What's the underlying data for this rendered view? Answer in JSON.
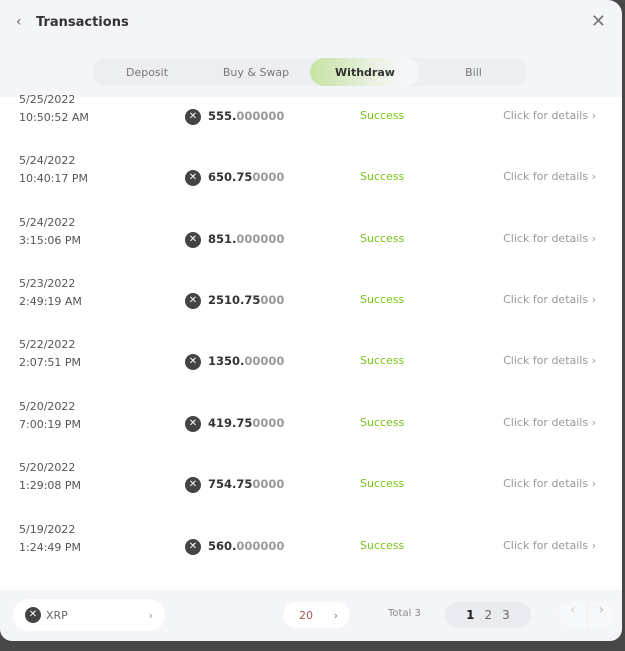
{
  "header": {
    "title": "Transactions",
    "back_icon": "chevron-left-icon",
    "close_icon": "close-icon"
  },
  "tabs": [
    {
      "label": "Deposit"
    },
    {
      "label": "Buy & Swap"
    },
    {
      "label": "Withdraw",
      "active": true
    },
    {
      "label": "Bill"
    }
  ],
  "rows": [
    {
      "date": "5/25/2022",
      "time": "10:50:52 AM",
      "amount_int": "555.",
      "amount_dec": "000000",
      "status": "Success",
      "details": "Click for details"
    },
    {
      "date": "5/24/2022",
      "time": "10:40:17 PM",
      "amount_int": "650.75",
      "amount_dec": "0000",
      "status": "Success",
      "details": "Click for details"
    },
    {
      "date": "5/24/2022",
      "time": "3:15:06 PM",
      "amount_int": "851.",
      "amount_dec": "000000",
      "status": "Success",
      "details": "Click for details"
    },
    {
      "date": "5/23/2022",
      "time": "2:49:19 AM",
      "amount_int": "2510.75",
      "amount_dec": "000",
      "status": "Success",
      "details": "Click for details"
    },
    {
      "date": "5/22/2022",
      "time": "2:07:51 PM",
      "amount_int": "1350.",
      "amount_dec": "00000",
      "status": "Success",
      "details": "Click for details"
    },
    {
      "date": "5/20/2022",
      "time": "7:00:19 PM",
      "amount_int": "419.75",
      "amount_dec": "0000",
      "status": "Success",
      "details": "Click for details"
    },
    {
      "date": "5/20/2022",
      "time": "1:29:08 PM",
      "amount_int": "754.75",
      "amount_dec": "0000",
      "status": "Success",
      "details": "Click for details"
    },
    {
      "date": "5/19/2022",
      "time": "1:24:49 PM",
      "amount_int": "560.",
      "amount_dec": "000000",
      "status": "Success",
      "details": "Click for details"
    }
  ],
  "footer": {
    "coin": "XRP",
    "page_size": "20",
    "total": "Total 3",
    "pages": [
      "1",
      "2",
      "3"
    ],
    "current_page": "1"
  },
  "colors": {
    "success": "#7ac31a",
    "accent": "#c8e3a3"
  }
}
